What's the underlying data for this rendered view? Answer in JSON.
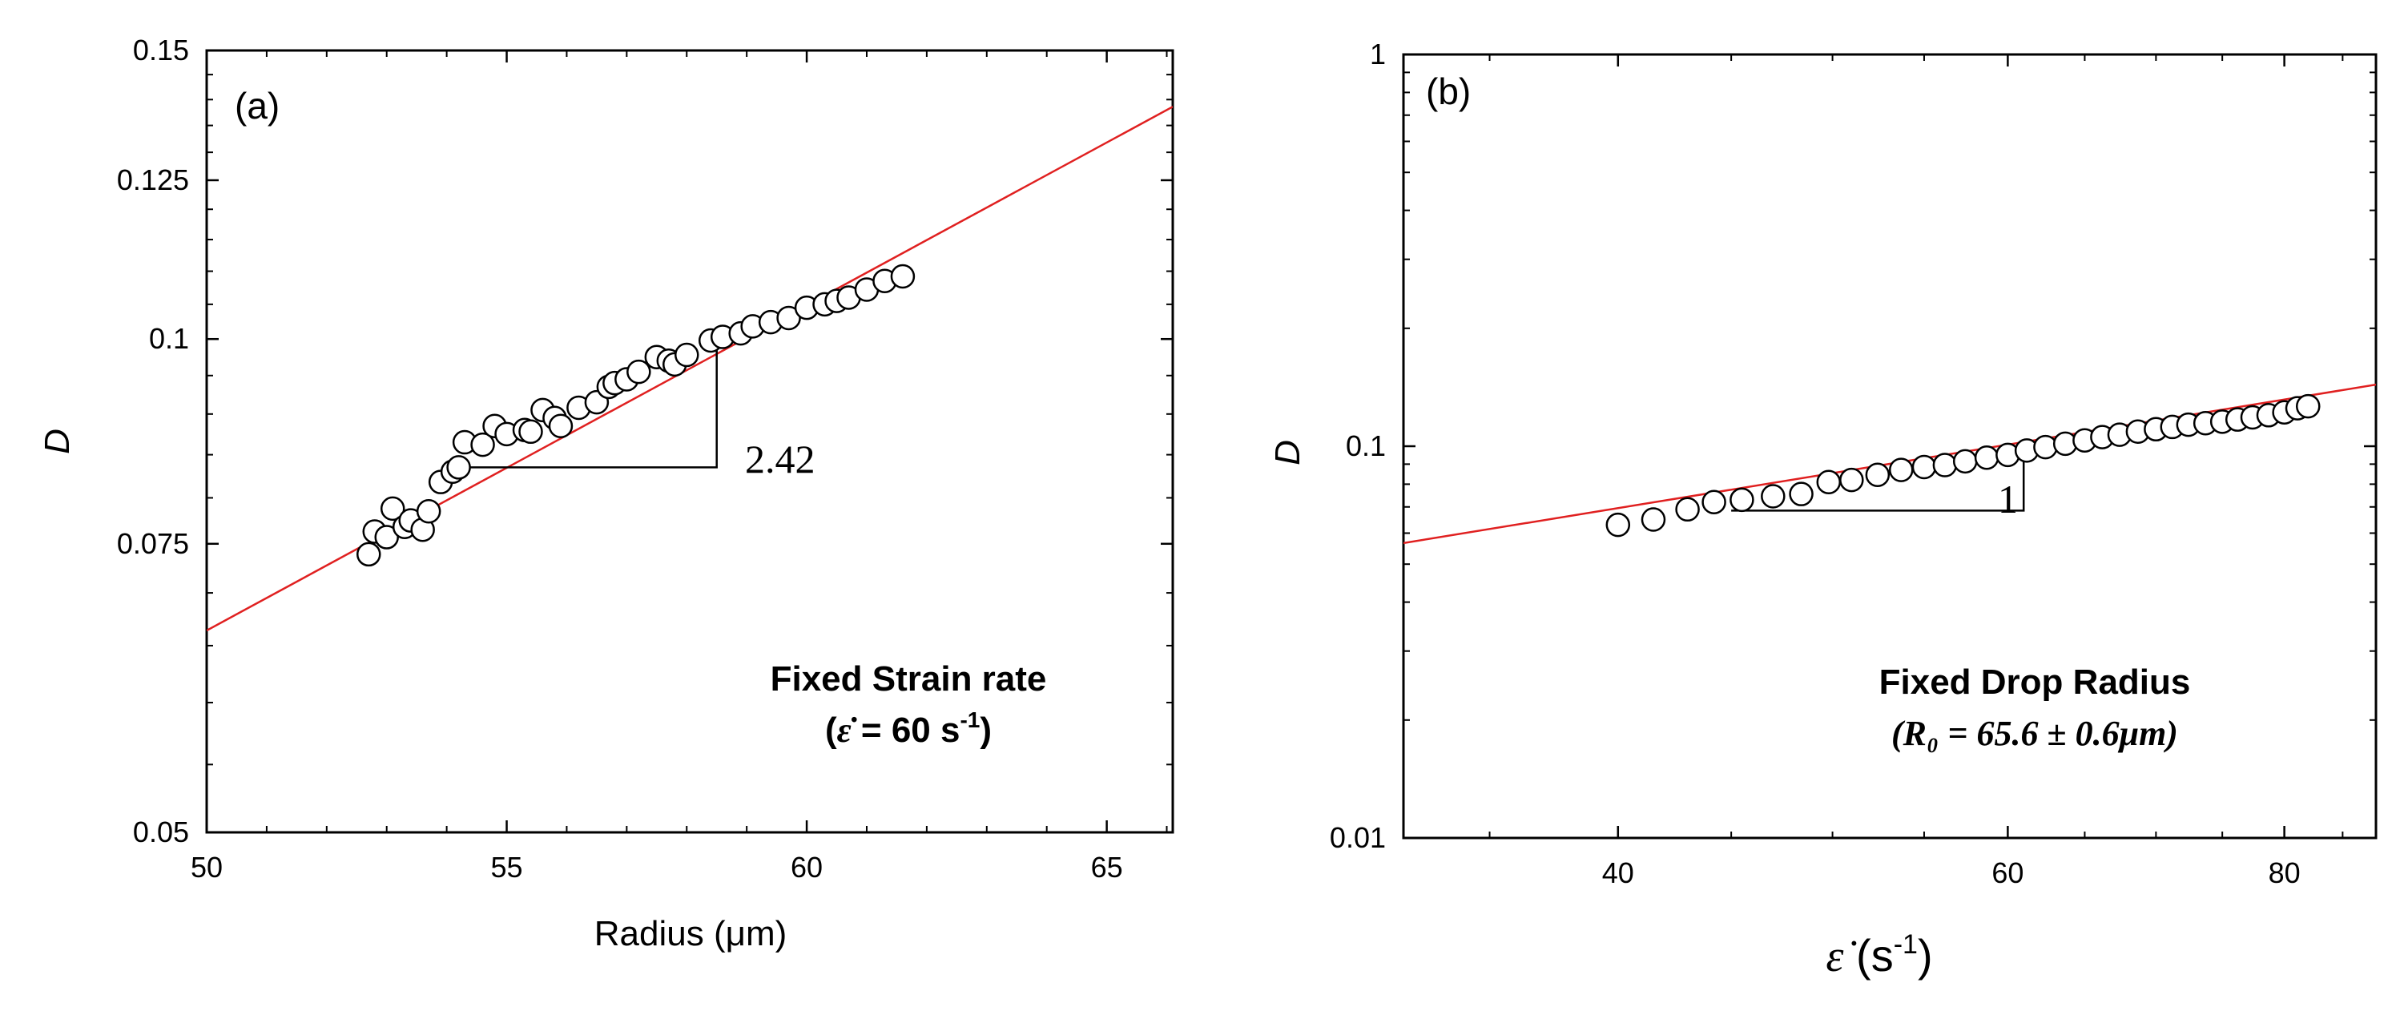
{
  "chart_data": [
    {
      "type": "scatter",
      "panel": "(a)",
      "xlabel": "Radius (μm)",
      "ylabel": "D",
      "x_scale": "linear",
      "y_scale": "log",
      "xlim": [
        50,
        66.1
      ],
      "ylim": [
        0.05,
        0.15
      ],
      "x_ticks": [
        50,
        55,
        60,
        65
      ],
      "y_ticks": [
        0.05,
        0.075,
        0.1,
        0.125,
        0.15
      ],
      "y_tick_labels": [
        "0.05",
        "0.075",
        "0.1",
        "0.125",
        "0.15"
      ],
      "annotation": {
        "line1": "Fixed Strain rate",
        "line2_prefix": "(",
        "line2_symbol": "ε̇",
        "line2_text": " =  60 s",
        "line2_sup": "-1",
        "line2_suffix": ")"
      },
      "fit_line": {
        "color": "#e02020",
        "x": [
          50,
          66.1
        ],
        "y": [
          0.0664,
          0.1386
        ]
      },
      "slope_triangle": {
        "label": "2.42",
        "x": [
          54.2,
          58.5
        ],
        "y": [
          0.0835,
          0.0986
        ]
      },
      "points": {
        "x": [
          52.7,
          52.8,
          53.0,
          53.1,
          53.3,
          53.4,
          53.6,
          53.7,
          53.9,
          54.1,
          54.2,
          54.3,
          54.6,
          54.8,
          55.0,
          55.3,
          55.4,
          55.6,
          55.8,
          55.9,
          56.2,
          56.5,
          56.7,
          56.8,
          57.0,
          57.2,
          57.5,
          57.7,
          57.8,
          58.0,
          58.4,
          58.6,
          58.9,
          59.1,
          59.4,
          59.7,
          60.0,
          60.3,
          60.5,
          60.7,
          61.0,
          61.3,
          61.6
        ],
        "y": [
          0.0739,
          0.0763,
          0.0757,
          0.0788,
          0.0768,
          0.0775,
          0.0765,
          0.0785,
          0.0818,
          0.083,
          0.0835,
          0.0865,
          0.0862,
          0.0885,
          0.0875,
          0.088,
          0.0878,
          0.0905,
          0.0895,
          0.0885,
          0.0908,
          0.0915,
          0.0935,
          0.094,
          0.0945,
          0.0955,
          0.0975,
          0.097,
          0.0965,
          0.0978,
          0.0998,
          0.1003,
          0.1008,
          0.1018,
          0.1024,
          0.103,
          0.1045,
          0.105,
          0.1055,
          0.106,
          0.1072,
          0.1085,
          0.1092
        ]
      }
    },
    {
      "type": "scatter",
      "panel": "(b)",
      "xlabel_symbol": "ε̇",
      "xlabel_text": " (s",
      "xlabel_sup": "-1",
      "xlabel_suffix": ")",
      "ylabel": "D",
      "x_scale": "log",
      "y_scale": "log",
      "xlim": [
        32,
        88
      ],
      "ylim": [
        0.01,
        1
      ],
      "x_ticks": [
        40,
        60,
        80
      ],
      "y_ticks": [
        0.01,
        0.1,
        1
      ],
      "y_tick_labels": [
        "0.01",
        "0.1",
        "1"
      ],
      "annotation": {
        "line1": "Fixed Drop Radius",
        "line2": "(R₀ = 65.6 ± 0.6μm)"
      },
      "fit_line": {
        "color": "#e02020",
        "x": [
          32,
          88
        ],
        "y": [
          0.0566,
          0.1436
        ]
      },
      "slope_triangle": {
        "label": "1",
        "x": [
          45,
          61
        ],
        "y": [
          0.0685,
          0.0995
        ]
      },
      "points": {
        "x": [
          40,
          41.5,
          43,
          44.2,
          45.5,
          47,
          48.4,
          49.8,
          51,
          52.4,
          53.7,
          55,
          56.2,
          57.4,
          58.7,
          60,
          61.2,
          62.4,
          63.7,
          65,
          66.2,
          67.4,
          68.7,
          70,
          71.2,
          72.4,
          73.7,
          75,
          76.2,
          77.4,
          78.7,
          80,
          81.1,
          82
        ],
        "y": [
          0.063,
          0.065,
          0.069,
          0.072,
          0.073,
          0.0745,
          0.0755,
          0.081,
          0.082,
          0.0845,
          0.087,
          0.0885,
          0.0895,
          0.0915,
          0.0935,
          0.095,
          0.0975,
          0.0995,
          0.1015,
          0.1035,
          0.1055,
          0.107,
          0.109,
          0.1105,
          0.112,
          0.1135,
          0.1145,
          0.1155,
          0.117,
          0.1185,
          0.12,
          0.122,
          0.125,
          0.1265
        ]
      }
    }
  ]
}
